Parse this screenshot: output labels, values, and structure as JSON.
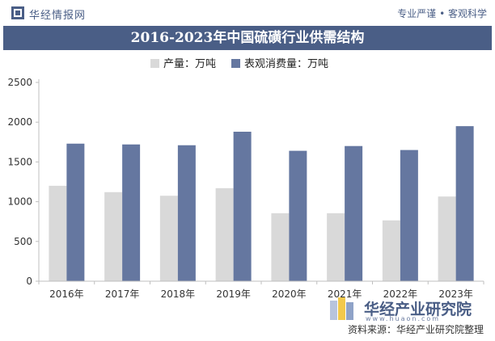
{
  "header": {
    "brand": "华经情报网",
    "slogan": "专业严谨 • 客观科学"
  },
  "footer": {
    "brand_name": "华经产业研究院",
    "brand_url": "www.huaon.com",
    "source": "资料来源：华经产业研究院整理"
  },
  "colors": {
    "header_bar": "#4a5e86",
    "production": "#d9d9d9",
    "consumption": "#6577a0"
  },
  "chart_data": {
    "type": "bar",
    "title": "2016-2023年中国硫磺行业供需结构",
    "categories": [
      "2016年",
      "2017年",
      "2018年",
      "2019年",
      "2020年",
      "2021年",
      "2022年",
      "2023年"
    ],
    "series": [
      {
        "name": "产量：万吨",
        "values": [
          1200,
          1120,
          1075,
          1170,
          855,
          855,
          765,
          1065
        ]
      },
      {
        "name": "表观消费量：万吨",
        "values": [
          1730,
          1720,
          1710,
          1880,
          1640,
          1700,
          1650,
          1950
        ]
      }
    ],
    "ylim": [
      0,
      2500
    ],
    "yticks": [
      0,
      500,
      1000,
      1500,
      2000,
      2500
    ],
    "grid": false,
    "legend": "top-center"
  }
}
